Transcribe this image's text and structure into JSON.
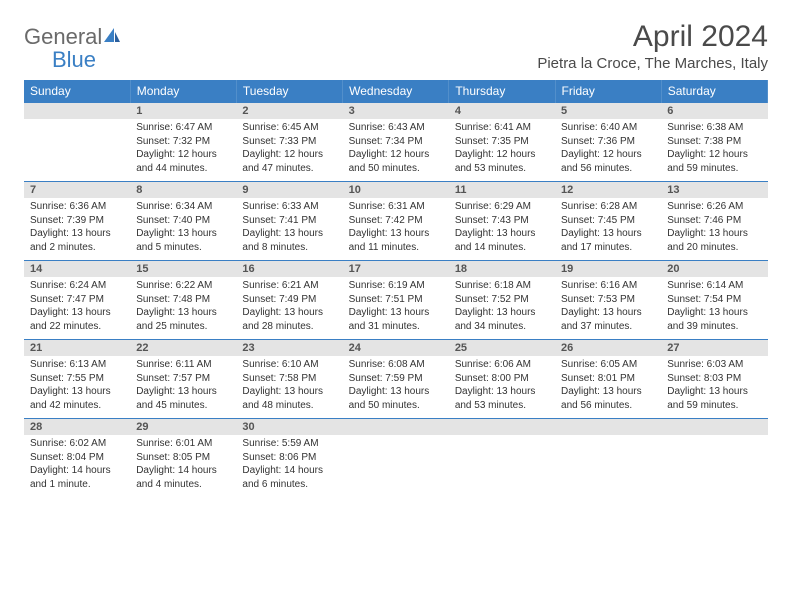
{
  "logo": {
    "word1": "General",
    "word2": "Blue"
  },
  "title": "April 2024",
  "location": "Pietra la Croce, The Marches, Italy",
  "colors": {
    "header_bg": "#3a7fc4",
    "header_fg": "#ffffff",
    "daynum_bg": "#e4e4e4",
    "border": "#3a7fc4",
    "text": "#333333"
  },
  "day_headers": [
    "Sunday",
    "Monday",
    "Tuesday",
    "Wednesday",
    "Thursday",
    "Friday",
    "Saturday"
  ],
  "weeks": [
    [
      {
        "n": "",
        "sunrise": "",
        "sunset": "",
        "daylight": ""
      },
      {
        "n": "1",
        "sunrise": "Sunrise: 6:47 AM",
        "sunset": "Sunset: 7:32 PM",
        "daylight": "Daylight: 12 hours and 44 minutes."
      },
      {
        "n": "2",
        "sunrise": "Sunrise: 6:45 AM",
        "sunset": "Sunset: 7:33 PM",
        "daylight": "Daylight: 12 hours and 47 minutes."
      },
      {
        "n": "3",
        "sunrise": "Sunrise: 6:43 AM",
        "sunset": "Sunset: 7:34 PM",
        "daylight": "Daylight: 12 hours and 50 minutes."
      },
      {
        "n": "4",
        "sunrise": "Sunrise: 6:41 AM",
        "sunset": "Sunset: 7:35 PM",
        "daylight": "Daylight: 12 hours and 53 minutes."
      },
      {
        "n": "5",
        "sunrise": "Sunrise: 6:40 AM",
        "sunset": "Sunset: 7:36 PM",
        "daylight": "Daylight: 12 hours and 56 minutes."
      },
      {
        "n": "6",
        "sunrise": "Sunrise: 6:38 AM",
        "sunset": "Sunset: 7:38 PM",
        "daylight": "Daylight: 12 hours and 59 minutes."
      }
    ],
    [
      {
        "n": "7",
        "sunrise": "Sunrise: 6:36 AM",
        "sunset": "Sunset: 7:39 PM",
        "daylight": "Daylight: 13 hours and 2 minutes."
      },
      {
        "n": "8",
        "sunrise": "Sunrise: 6:34 AM",
        "sunset": "Sunset: 7:40 PM",
        "daylight": "Daylight: 13 hours and 5 minutes."
      },
      {
        "n": "9",
        "sunrise": "Sunrise: 6:33 AM",
        "sunset": "Sunset: 7:41 PM",
        "daylight": "Daylight: 13 hours and 8 minutes."
      },
      {
        "n": "10",
        "sunrise": "Sunrise: 6:31 AM",
        "sunset": "Sunset: 7:42 PM",
        "daylight": "Daylight: 13 hours and 11 minutes."
      },
      {
        "n": "11",
        "sunrise": "Sunrise: 6:29 AM",
        "sunset": "Sunset: 7:43 PM",
        "daylight": "Daylight: 13 hours and 14 minutes."
      },
      {
        "n": "12",
        "sunrise": "Sunrise: 6:28 AM",
        "sunset": "Sunset: 7:45 PM",
        "daylight": "Daylight: 13 hours and 17 minutes."
      },
      {
        "n": "13",
        "sunrise": "Sunrise: 6:26 AM",
        "sunset": "Sunset: 7:46 PM",
        "daylight": "Daylight: 13 hours and 20 minutes."
      }
    ],
    [
      {
        "n": "14",
        "sunrise": "Sunrise: 6:24 AM",
        "sunset": "Sunset: 7:47 PM",
        "daylight": "Daylight: 13 hours and 22 minutes."
      },
      {
        "n": "15",
        "sunrise": "Sunrise: 6:22 AM",
        "sunset": "Sunset: 7:48 PM",
        "daylight": "Daylight: 13 hours and 25 minutes."
      },
      {
        "n": "16",
        "sunrise": "Sunrise: 6:21 AM",
        "sunset": "Sunset: 7:49 PM",
        "daylight": "Daylight: 13 hours and 28 minutes."
      },
      {
        "n": "17",
        "sunrise": "Sunrise: 6:19 AM",
        "sunset": "Sunset: 7:51 PM",
        "daylight": "Daylight: 13 hours and 31 minutes."
      },
      {
        "n": "18",
        "sunrise": "Sunrise: 6:18 AM",
        "sunset": "Sunset: 7:52 PM",
        "daylight": "Daylight: 13 hours and 34 minutes."
      },
      {
        "n": "19",
        "sunrise": "Sunrise: 6:16 AM",
        "sunset": "Sunset: 7:53 PM",
        "daylight": "Daylight: 13 hours and 37 minutes."
      },
      {
        "n": "20",
        "sunrise": "Sunrise: 6:14 AM",
        "sunset": "Sunset: 7:54 PM",
        "daylight": "Daylight: 13 hours and 39 minutes."
      }
    ],
    [
      {
        "n": "21",
        "sunrise": "Sunrise: 6:13 AM",
        "sunset": "Sunset: 7:55 PM",
        "daylight": "Daylight: 13 hours and 42 minutes."
      },
      {
        "n": "22",
        "sunrise": "Sunrise: 6:11 AM",
        "sunset": "Sunset: 7:57 PM",
        "daylight": "Daylight: 13 hours and 45 minutes."
      },
      {
        "n": "23",
        "sunrise": "Sunrise: 6:10 AM",
        "sunset": "Sunset: 7:58 PM",
        "daylight": "Daylight: 13 hours and 48 minutes."
      },
      {
        "n": "24",
        "sunrise": "Sunrise: 6:08 AM",
        "sunset": "Sunset: 7:59 PM",
        "daylight": "Daylight: 13 hours and 50 minutes."
      },
      {
        "n": "25",
        "sunrise": "Sunrise: 6:06 AM",
        "sunset": "Sunset: 8:00 PM",
        "daylight": "Daylight: 13 hours and 53 minutes."
      },
      {
        "n": "26",
        "sunrise": "Sunrise: 6:05 AM",
        "sunset": "Sunset: 8:01 PM",
        "daylight": "Daylight: 13 hours and 56 minutes."
      },
      {
        "n": "27",
        "sunrise": "Sunrise: 6:03 AM",
        "sunset": "Sunset: 8:03 PM",
        "daylight": "Daylight: 13 hours and 59 minutes."
      }
    ],
    [
      {
        "n": "28",
        "sunrise": "Sunrise: 6:02 AM",
        "sunset": "Sunset: 8:04 PM",
        "daylight": "Daylight: 14 hours and 1 minute."
      },
      {
        "n": "29",
        "sunrise": "Sunrise: 6:01 AM",
        "sunset": "Sunset: 8:05 PM",
        "daylight": "Daylight: 14 hours and 4 minutes."
      },
      {
        "n": "30",
        "sunrise": "Sunrise: 5:59 AM",
        "sunset": "Sunset: 8:06 PM",
        "daylight": "Daylight: 14 hours and 6 minutes."
      },
      {
        "n": "",
        "sunrise": "",
        "sunset": "",
        "daylight": ""
      },
      {
        "n": "",
        "sunrise": "",
        "sunset": "",
        "daylight": ""
      },
      {
        "n": "",
        "sunrise": "",
        "sunset": "",
        "daylight": ""
      },
      {
        "n": "",
        "sunrise": "",
        "sunset": "",
        "daylight": ""
      }
    ]
  ]
}
